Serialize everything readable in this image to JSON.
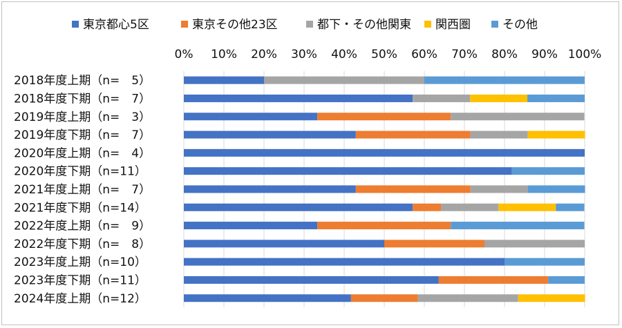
{
  "chart_data": {
    "type": "bar",
    "orientation": "horizontal",
    "stacked": "percent",
    "x_ticks": [
      "0%",
      "10%",
      "20%",
      "30%",
      "40%",
      "50%",
      "60%",
      "70%",
      "80%",
      "90%",
      "100%"
    ],
    "xlim": [
      0,
      100
    ],
    "grid": true,
    "legend_position": "top",
    "categories": [
      "2018年度上期（n=　5）",
      "2018年度下期（n=　7）",
      "2019年度上期（n=　3）",
      "2019年度下期（n=　7）",
      "2020年度上期（n=　4）",
      "2020年度下期（n=11）",
      "2021年度上期（n=　7）",
      "2021年度下期（n=14）",
      "2022年度上期（n=　9）",
      "2022年度下期（n=　8）",
      "2023年度上期（n=10）",
      "2023年度下期（n=11）",
      "2024年度上期（n=12）"
    ],
    "series": [
      {
        "name": "東京都心5区",
        "color": "#4472c4",
        "values": [
          20,
          57.1,
          33.3,
          42.9,
          100,
          81.8,
          42.9,
          57.1,
          33.3,
          50,
          80,
          63.6,
          41.7
        ]
      },
      {
        "name": "東京その他23区",
        "color": "#ed7d31",
        "values": [
          0,
          0,
          33.3,
          28.6,
          0,
          0,
          28.6,
          7.1,
          33.3,
          25,
          0,
          27.3,
          16.7
        ]
      },
      {
        "name": "都下・その他関東",
        "color": "#a5a5a5",
        "values": [
          40,
          14.3,
          33.3,
          14.3,
          0,
          0,
          14.3,
          14.3,
          0,
          25,
          0,
          0,
          25
        ]
      },
      {
        "name": "関西圏",
        "color": "#ffc000",
        "values": [
          0,
          14.3,
          0,
          14.3,
          0,
          0,
          0,
          14.3,
          0,
          0,
          0,
          0,
          16.7
        ]
      },
      {
        "name": "その他",
        "color": "#5b9bd5",
        "values": [
          40,
          14.3,
          0,
          0,
          0,
          18.2,
          14.3,
          7.1,
          33.3,
          0,
          20,
          9.1,
          0
        ]
      }
    ]
  }
}
